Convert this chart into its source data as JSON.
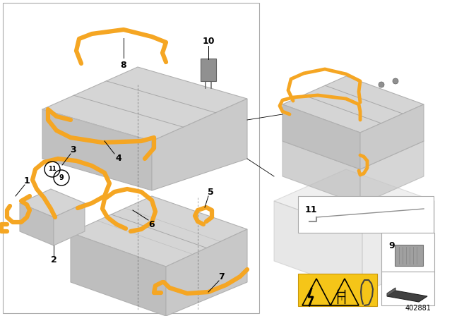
{
  "bg_color": "#ffffff",
  "orange": "#F5A623",
  "gray1": "#D0D0D0",
  "gray2": "#C0C0C0",
  "gray3": "#C8C8C8",
  "gray4": "#B8B8B8",
  "gray5": "#A8A8A8",
  "gray6": "#E0E0E0",
  "gray7": "#909090",
  "border_color": "#AAAAAA",
  "line_color": "#000000",
  "diagram_number": "402881",
  "lw_cable": 3.5
}
